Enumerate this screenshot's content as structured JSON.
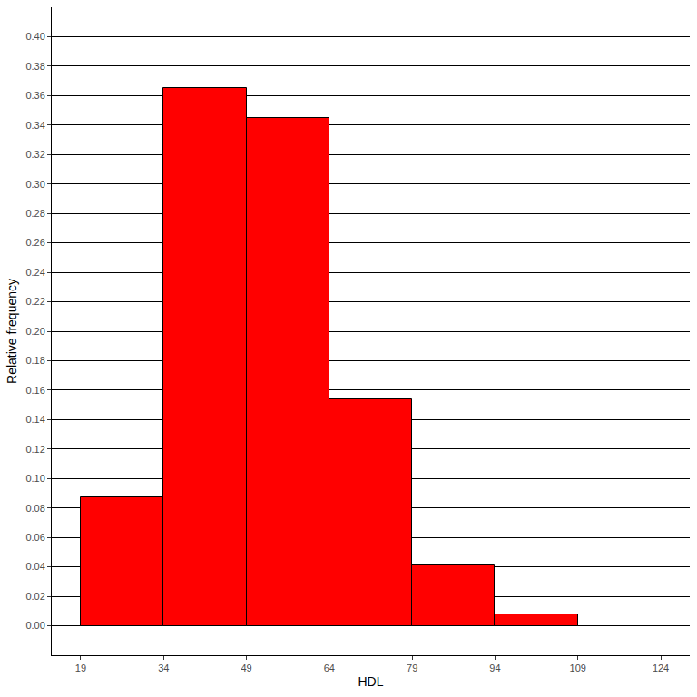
{
  "chart_data": {
    "type": "histogram",
    "xlabel": "HDL",
    "ylabel": "Relative frequency",
    "bins": [
      19,
      34,
      49,
      64,
      79,
      94,
      109
    ],
    "values": [
      0.087,
      0.365,
      0.345,
      0.154,
      0.041,
      0.008
    ],
    "color": "#ff0000",
    "xlim": [
      13.75,
      129.25
    ],
    "xticks": [
      19,
      34,
      49,
      64,
      79,
      94,
      109,
      124
    ],
    "ylim": [
      -0.02,
      0.42
    ],
    "yticks": [
      {
        "value": 0,
        "label": "0.00"
      },
      {
        "value": 0.02,
        "label": "0.02"
      },
      {
        "value": 0.04,
        "label": "0.04"
      },
      {
        "value": 0.06,
        "label": "0.06"
      },
      {
        "value": 0.08,
        "label": "0.08"
      },
      {
        "value": 0.1,
        "label": "0.10"
      },
      {
        "value": 0.12,
        "label": "0.12"
      },
      {
        "value": 0.14,
        "label": "0.14"
      },
      {
        "value": 0.16,
        "label": "0.16"
      },
      {
        "value": 0.18,
        "label": "0.18"
      },
      {
        "value": 0.2,
        "label": "0.20"
      },
      {
        "value": 0.22,
        "label": "0.22"
      },
      {
        "value": 0.24,
        "label": "0.24"
      },
      {
        "value": 0.26,
        "label": "0.26"
      },
      {
        "value": 0.28,
        "label": "0.28"
      },
      {
        "value": 0.3,
        "label": "0.30"
      },
      {
        "value": 0.32,
        "label": "0.32"
      },
      {
        "value": 0.34,
        "label": "0.34"
      },
      {
        "value": 0.36,
        "label": "0.36"
      },
      {
        "value": 0.38,
        "label": "0.38"
      },
      {
        "value": 0.4,
        "label": "0.40"
      }
    ],
    "grid": true
  }
}
